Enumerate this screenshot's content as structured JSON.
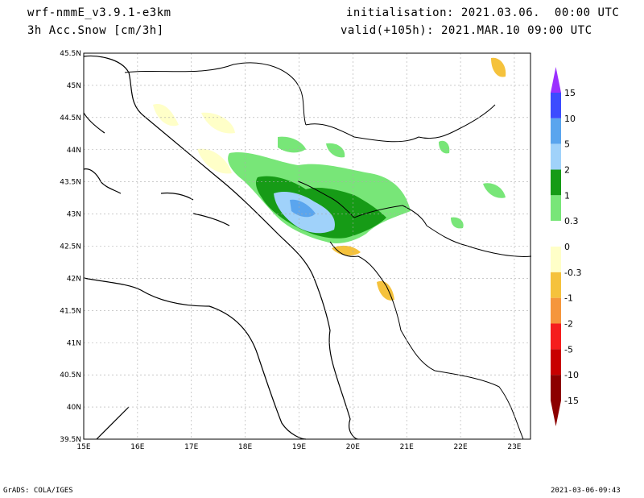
{
  "header": {
    "model": "wrf-nmmE_v3.9.1-e3km",
    "field": "3h Acc.Snow [cm/3h]",
    "init": "initialisation: 2021.03.06.  00:00 UTC",
    "valid": "valid(+105h): 2021.MAR.10 09:00 UTC"
  },
  "axes": {
    "lat_labels": [
      "45.5N",
      "45N",
      "44.5N",
      "44N",
      "43.5N",
      "43N",
      "42.5N",
      "42N",
      "41.5N",
      "41N",
      "40.5N",
      "40N",
      "39.5N"
    ],
    "lon_labels": [
      "15E",
      "16E",
      "17E",
      "18E",
      "19E",
      "20E",
      "21E",
      "22E",
      "23E"
    ]
  },
  "colorbar": {
    "labels": [
      "15",
      "10",
      "5",
      "2",
      "1",
      "0.3",
      "0",
      "-0.3",
      "-1",
      "-2",
      "-5",
      "-10",
      "-15"
    ],
    "colors": [
      "#9b30ff",
      "#3c4cff",
      "#5aa5ee",
      "#a0d2fa",
      "#169b16",
      "#78e678",
      "#ffffff",
      "#ffffc8",
      "#f5c23c",
      "#f5963c",
      "#f51e1e",
      "#c80000",
      "#8c0000"
    ]
  },
  "footer": {
    "left": "GrADS: COLA/IGES",
    "right": "2021-03-06-09:43"
  }
}
